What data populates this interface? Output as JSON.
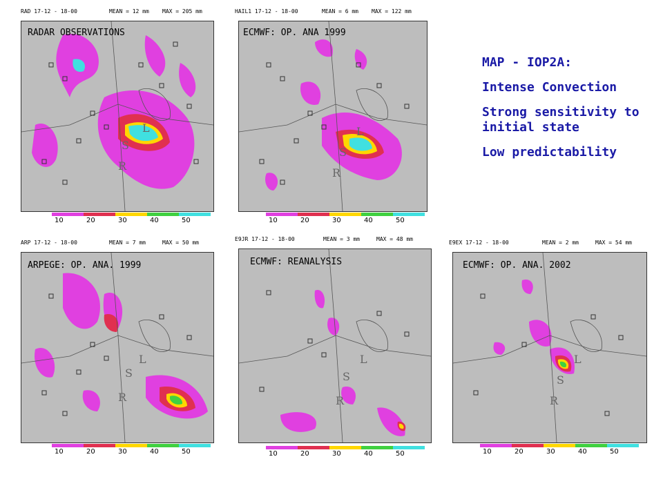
{
  "title_block": {
    "heading": "MAP - IOP2A:",
    "lines": [
      "Intense Convection",
      "Strong sensitivity to initial state",
      "Low predictability"
    ]
  },
  "panels": [
    {
      "caption": "RADAR OBSERVATIONS",
      "header_left": "RAD 17-12 - 18-00",
      "mean": "MEAN = 12 mm",
      "max": "MAX = 205 mm"
    },
    {
      "caption": "ECMWF: OP. ANA 1999",
      "header_left": "HAIL1 17-12 - 18-00",
      "mean": "MEAN = 6 mm",
      "max": "MAX = 122 mm"
    },
    {
      "caption": "ARPEGE: OP. ANA. 1999",
      "header_left": "ARP 17-12 - 18-00",
      "mean": "MEAN = 7 mm",
      "max": "MAX = 50 mm"
    },
    {
      "caption": "ECMWF: REANALYSIS",
      "header_left": "E9JR 17-12 - 18-00",
      "mean": "MEAN = 3 mm",
      "max": "MAX = 48 mm"
    },
    {
      "caption": "ECMWF: OP. ANA. 2002",
      "header_left": "E9EX 17-12 - 18-00",
      "mean": "MEAN = 2 mm",
      "max": "MAX = 54 mm"
    }
  ],
  "legend": {
    "ticks": [
      "10",
      "20",
      "30",
      "40",
      "50"
    ],
    "colors": [
      "#e040e0",
      "#e03050",
      "#ffd700",
      "#40d040",
      "#40e0e0"
    ]
  },
  "map_labels": [
    "S",
    "R",
    "L"
  ]
}
